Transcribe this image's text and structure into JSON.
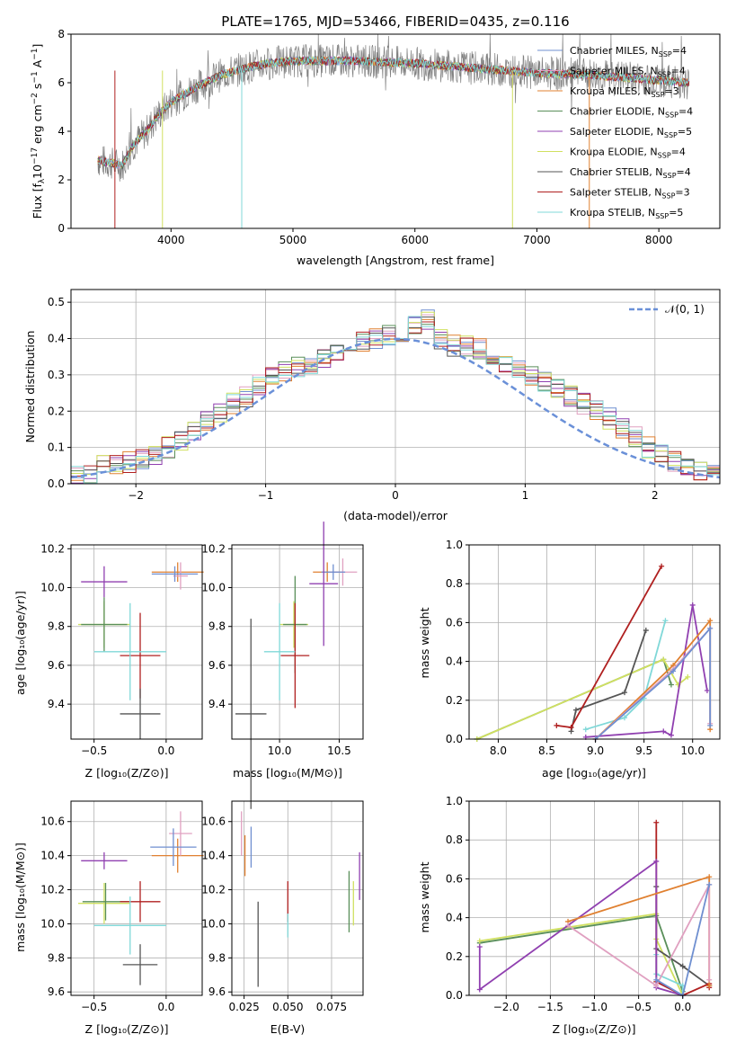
{
  "figure": {
    "title": "PLATE=1765, MJD=53466, FIBERID=0435, z=0.116"
  },
  "chart_data": [
    {
      "id": "spectrum",
      "type": "line",
      "xlabel": "wavelength [Angstrom, rest frame]",
      "ylabel": "Flux [f_λ 10^-17 erg cm^-2 s^-1 A^-1]",
      "xlim": [
        3180,
        8500
      ],
      "ylim": [
        0,
        8
      ],
      "xticks": [
        "4000",
        "5000",
        "6000",
        "7000",
        "8000"
      ],
      "yticks": [
        "0",
        "2",
        "4",
        "6",
        "8"
      ],
      "grid": false,
      "legend_position": "right",
      "data_points_approx": [
        [
          3400,
          2.8
        ],
        [
          3600,
          2.6
        ],
        [
          3700,
          3.5
        ],
        [
          3800,
          4.0
        ],
        [
          3900,
          4.7
        ],
        [
          4000,
          5.2
        ],
        [
          4100,
          5.5
        ],
        [
          4200,
          5.8
        ],
        [
          4400,
          6.3
        ],
        [
          4600,
          6.6
        ],
        [
          4800,
          6.8
        ],
        [
          5000,
          6.9
        ],
        [
          5500,
          6.9
        ],
        [
          6000,
          6.8
        ],
        [
          6500,
          6.6
        ],
        [
          7000,
          6.4
        ],
        [
          7500,
          6.3
        ],
        [
          8000,
          6.1
        ],
        [
          8250,
          6.0
        ]
      ],
      "series": [
        {
          "label": "Chabrier MILES, N",
          "sub": "SSP",
          "tail": "=4",
          "color": "#6f8fd0"
        },
        {
          "label": "Salpeter MILES, N",
          "sub": "SSP",
          "tail": "=4",
          "color": "#e0a0c0"
        },
        {
          "label": "Kroupa MILES, N",
          "sub": "SSP",
          "tail": "=3",
          "color": "#e08030"
        },
        {
          "label": "Chabrier ELODIE, N",
          "sub": "SSP",
          "tail": "=4",
          "color": "#5a8f5a"
        },
        {
          "label": "Salpeter ELODIE, N",
          "sub": "SSP",
          "tail": "=5",
          "color": "#9040b0"
        },
        {
          "label": "Kroupa ELODIE, N",
          "sub": "SSP",
          "tail": "=4",
          "color": "#d0e060"
        },
        {
          "label": "Chabrier STELIB, N",
          "sub": "SSP",
          "tail": "=4",
          "color": "#555555"
        },
        {
          "label": "Salpeter STELIB, N",
          "sub": "SSP",
          "tail": "=3",
          "color": "#b02020"
        },
        {
          "label": "Kroupa STELIB, N",
          "sub": "SSP",
          "tail": "=5",
          "color": "#80d8d8"
        }
      ]
    },
    {
      "id": "residuals",
      "type": "line",
      "xlabel": "(data-model)/error",
      "ylabel": "Normed distribution",
      "xlim": [
        -2.5,
        2.5
      ],
      "ylim": [
        0,
        0.535
      ],
      "xticks": [
        -2,
        -1,
        0,
        1,
        2
      ],
      "xtick_labels": [
        "−2",
        "−1",
        "0",
        "1",
        "2"
      ],
      "yticks": [
        "0.0",
        "0.1",
        "0.2",
        "0.3",
        "0.4",
        "0.5"
      ],
      "grid": true,
      "legend_position": "top-right",
      "legend_label": "𝒩(0, 1)",
      "gaussian_color": "#6a90d8",
      "bin_width": 0.1,
      "hist_values": [
        0.02,
        0.02,
        0.05,
        0.05,
        0.06,
        0.07,
        0.08,
        0.1,
        0.12,
        0.14,
        0.17,
        0.2,
        0.22,
        0.24,
        0.27,
        0.29,
        0.31,
        0.32,
        0.33,
        0.35,
        0.36,
        0.37,
        0.39,
        0.4,
        0.41,
        0.42,
        0.44,
        0.45,
        0.4,
        0.38,
        0.38,
        0.37,
        0.35,
        0.33,
        0.31,
        0.3,
        0.28,
        0.26,
        0.24,
        0.22,
        0.2,
        0.18,
        0.15,
        0.13,
        0.1,
        0.08,
        0.06,
        0.05,
        0.04,
        0.03
      ]
    },
    {
      "id": "age_vs_Z",
      "type": "scatter",
      "xlabel": "Z [log₁₀(Z/Z⊙)]",
      "ylabel": "age  [log₁₀(age/yr)]",
      "xlim": [
        -0.66,
        0.25
      ],
      "ylim": [
        9.22,
        10.22
      ],
      "xticks": [
        -0.5,
        0.0
      ],
      "xtick_labels": [
        "−0.5",
        "0.0"
      ],
      "yticks": [
        9.4,
        9.6,
        9.8,
        10.0,
        10.2
      ],
      "ytick_labels": [
        "9.4",
        "9.6",
        "9.8",
        "10.0",
        "10.2"
      ],
      "grid": true,
      "points": [
        {
          "x": 0.08,
          "y": 10.08,
          "xerr": 0.18,
          "yerr": 0.05,
          "color": "#e08030"
        },
        {
          "x": 0.1,
          "y": 10.06,
          "xerr": 0.05,
          "yerr": 0.07,
          "color": "#e0a0c0"
        },
        {
          "x": 0.06,
          "y": 10.07,
          "xerr": 0.16,
          "yerr": 0.04,
          "color": "#6f8fd0"
        },
        {
          "x": -0.43,
          "y": 10.03,
          "xerr": 0.16,
          "yerr": 0.08,
          "color": "#9040b0"
        },
        {
          "x": -0.43,
          "y": 9.81,
          "xerr": 0.18,
          "yerr": 0.12,
          "color": "#d0e060"
        },
        {
          "x": -0.43,
          "y": 9.81,
          "xerr": 0.16,
          "yerr": 0.14,
          "color": "#5a8f5a"
        },
        {
          "x": -0.18,
          "y": 9.65,
          "xerr": 0.14,
          "yerr": 0.22,
          "color": "#b02020"
        },
        {
          "x": -0.25,
          "y": 9.67,
          "xerr": 0.25,
          "yerr": 0.25,
          "color": "#80d8d8"
        },
        {
          "x": -0.18,
          "y": 9.35,
          "xerr": 0.14,
          "yerr": 0.13,
          "color": "#555555"
        }
      ]
    },
    {
      "id": "age_vs_mass",
      "type": "scatter",
      "xlabel": "mass [log₁₀(M/M⊙)]",
      "ylabel": "",
      "xlim": [
        9.6,
        10.7
      ],
      "ylim": [
        9.22,
        10.22
      ],
      "xticks": [
        10.0,
        10.5
      ],
      "xtick_labels": [
        "10.0",
        "10.5"
      ],
      "yticks": [
        9.4,
        9.6,
        9.8,
        10.0,
        10.2
      ],
      "ytick_labels": [
        "9.4",
        "9.6",
        "9.8",
        "10.0",
        "10.2"
      ],
      "grid": true,
      "points": [
        {
          "x": 10.4,
          "y": 10.08,
          "xerr": 0.12,
          "yerr": 0.05,
          "color": "#e08030"
        },
        {
          "x": 10.53,
          "y": 10.08,
          "xerr": 0.12,
          "yerr": 0.07,
          "color": "#e0a0c0"
        },
        {
          "x": 10.45,
          "y": 10.08,
          "xerr": 0.1,
          "yerr": 0.04,
          "color": "#6f8fd0"
        },
        {
          "x": 10.37,
          "y": 10.02,
          "xerr": 0.12,
          "yerr": 0.32,
          "color": "#9040b0"
        },
        {
          "x": 10.12,
          "y": 9.81,
          "xerr": 0.12,
          "yerr": 0.12,
          "color": "#d0e060"
        },
        {
          "x": 10.13,
          "y": 9.81,
          "xerr": 0.1,
          "yerr": 0.25,
          "color": "#5a8f5a"
        },
        {
          "x": 10.13,
          "y": 9.65,
          "xerr": 0.12,
          "yerr": 0.27,
          "color": "#b02020"
        },
        {
          "x": 10.0,
          "y": 9.67,
          "xerr": 0.13,
          "yerr": 0.25,
          "color": "#80d8d8"
        },
        {
          "x": 9.76,
          "y": 9.35,
          "xerr": 0.13,
          "yerr": 0.49,
          "color": "#555555"
        }
      ]
    },
    {
      "id": "massweight_vs_age",
      "type": "line",
      "xlabel": "age  [log₁₀(age/yr)]",
      "ylabel": "mass weight",
      "xlim": [
        7.7,
        10.28
      ],
      "ylim": [
        0,
        1
      ],
      "xticks": [
        8.0,
        8.5,
        9.0,
        9.5,
        10.0
      ],
      "xtick_labels": [
        "8.0",
        "8.5",
        "9.0",
        "9.5",
        "10.0"
      ],
      "yticks": [
        0.0,
        0.2,
        0.4,
        0.6,
        0.8,
        1.0
      ],
      "ytick_labels": [
        "0.0",
        "0.2",
        "0.4",
        "0.6",
        "0.8",
        "1.0"
      ],
      "grid": true,
      "series": [
        {
          "name": "",
          "color": "#5a8f5a",
          "x": [
            7.78,
            9.7,
            9.78
          ],
          "y": [
            0.0,
            0.41,
            0.28
          ]
        },
        {
          "name": "",
          "color": "#d0e060",
          "x": [
            7.78,
            9.7,
            9.85,
            9.95
          ],
          "y": [
            0.0,
            0.41,
            0.28,
            0.32
          ]
        },
        {
          "name": "",
          "color": "#555555",
          "x": [
            8.75,
            8.8,
            9.3,
            9.52
          ],
          "y": [
            0.04,
            0.15,
            0.24,
            0.56
          ]
        },
        {
          "name": "",
          "color": "#b02020",
          "x": [
            8.6,
            8.75,
            9.68
          ],
          "y": [
            0.07,
            0.06,
            0.89
          ]
        },
        {
          "name": "",
          "color": "#80d8d8",
          "x": [
            8.9,
            9.3,
            9.5,
            9.72
          ],
          "y": [
            0.05,
            0.11,
            0.21,
            0.61
          ]
        },
        {
          "name": "",
          "color": "#9040b0",
          "x": [
            8.9,
            9.7,
            9.78,
            10.0,
            10.15
          ],
          "y": [
            0.01,
            0.04,
            0.02,
            0.69,
            0.25
          ]
        },
        {
          "name": "",
          "color": "#e08030",
          "x": [
            9.0,
            9.8,
            10.18,
            10.18
          ],
          "y": [
            0.0,
            0.38,
            0.61,
            0.05
          ]
        },
        {
          "name": "",
          "color": "#e0a0c0",
          "x": [
            9.0,
            9.8,
            10.18,
            10.18
          ],
          "y": [
            0.0,
            0.36,
            0.57,
            0.08
          ]
        },
        {
          "name": "",
          "color": "#6f8fd0",
          "x": [
            9.0,
            9.8,
            10.18,
            10.18
          ],
          "y": [
            0.0,
            0.35,
            0.57,
            0.07
          ]
        }
      ]
    },
    {
      "id": "mass_vs_Z",
      "type": "scatter",
      "xlabel": "Z [log₁₀(Z/Z⊙)]",
      "ylabel": "mass [log₁₀(M/M⊙)]",
      "xlim": [
        -0.66,
        0.25
      ],
      "ylim": [
        9.58,
        10.72
      ],
      "xticks": [
        -0.5,
        0.0
      ],
      "xtick_labels": [
        "−0.5",
        "0.0"
      ],
      "yticks": [
        9.6,
        9.8,
        10.0,
        10.2,
        10.4,
        10.6
      ],
      "ytick_labels": [
        "9.6",
        "9.8",
        "10.0",
        "10.2",
        "10.4",
        "10.6"
      ],
      "grid": true,
      "points": [
        {
          "x": 0.08,
          "y": 10.4,
          "xerr": 0.18,
          "yerr": 0.1,
          "color": "#e08030"
        },
        {
          "x": 0.1,
          "y": 10.53,
          "xerr": 0.08,
          "yerr": 0.13,
          "color": "#e0a0c0"
        },
        {
          "x": 0.05,
          "y": 10.45,
          "xerr": 0.16,
          "yerr": 0.11,
          "color": "#6f8fd0"
        },
        {
          "x": -0.43,
          "y": 10.37,
          "xerr": 0.16,
          "yerr": 0.05,
          "color": "#9040b0"
        },
        {
          "x": -0.43,
          "y": 10.12,
          "xerr": 0.18,
          "yerr": 0.12,
          "color": "#d0e060"
        },
        {
          "x": -0.42,
          "y": 10.13,
          "xerr": 0.16,
          "yerr": 0.11,
          "color": "#5a8f5a"
        },
        {
          "x": -0.18,
          "y": 10.13,
          "xerr": 0.14,
          "yerr": 0.12,
          "color": "#b02020"
        },
        {
          "x": -0.25,
          "y": 9.99,
          "xerr": 0.25,
          "yerr": 0.17,
          "color": "#80d8d8"
        },
        {
          "x": -0.18,
          "y": 9.76,
          "xerr": 0.12,
          "yerr": 0.12,
          "color": "#555555"
        }
      ]
    },
    {
      "id": "mass_vs_EBV",
      "type": "scatter",
      "xlabel": "E(B-V)",
      "ylabel": "",
      "xlim": [
        0.018,
        0.093
      ],
      "ylim": [
        9.58,
        10.72
      ],
      "xticks": [
        0.025,
        0.05,
        0.075
      ],
      "xtick_labels": [
        "0.025",
        "0.050",
        "0.075"
      ],
      "yticks": [
        9.6,
        9.8,
        10.0,
        10.2,
        10.4,
        10.6
      ],
      "ytick_labels": [
        "9.6",
        "9.8",
        "10.0",
        "10.2",
        "10.4",
        "10.6"
      ],
      "grid": true,
      "points": [
        {
          "x": 0.0235,
          "y": 10.53,
          "xerr": 0,
          "yerr": 0.13,
          "color": "#e0a0c0"
        },
        {
          "x": 0.0255,
          "y": 10.4,
          "xerr": 0,
          "yerr": 0.12,
          "color": "#e08030"
        },
        {
          "x": 0.029,
          "y": 10.45,
          "xerr": 0,
          "yerr": 0.12,
          "color": "#6f8fd0"
        },
        {
          "x": 0.033,
          "y": 9.88,
          "xerr": 0,
          "yerr": 0.25,
          "color": "#555555"
        },
        {
          "x": 0.05,
          "y": 10.13,
          "xerr": 0,
          "yerr": 0.12,
          "color": "#b02020"
        },
        {
          "x": 0.05,
          "y": 9.99,
          "xerr": 0,
          "yerr": 0.07,
          "color": "#80d8d8"
        },
        {
          "x": 0.085,
          "y": 10.13,
          "xerr": 0,
          "yerr": 0.18,
          "color": "#5a8f5a"
        },
        {
          "x": 0.0875,
          "y": 10.12,
          "xerr": 0,
          "yerr": 0.13,
          "color": "#d0e060"
        },
        {
          "x": 0.091,
          "y": 10.28,
          "xerr": 0,
          "yerr": 0.14,
          "color": "#9040b0"
        }
      ]
    },
    {
      "id": "massweight_vs_Z",
      "type": "line",
      "xlabel": "Z [log₁₀(Z/Z⊙)]",
      "ylabel": "mass weight",
      "xlim": [
        -2.42,
        0.42
      ],
      "ylim": [
        0,
        1
      ],
      "xticks": [
        -2.0,
        -1.5,
        -1.0,
        -0.5,
        0.0
      ],
      "xtick_labels": [
        "−2.0",
        "−1.5",
        "−1.0",
        "−0.5",
        "0.0"
      ],
      "yticks": [
        0.0,
        0.2,
        0.4,
        0.6,
        0.8,
        1.0
      ],
      "ytick_labels": [
        "0.0",
        "0.2",
        "0.4",
        "0.6",
        "0.8",
        "1.0"
      ],
      "grid": true,
      "series": [
        {
          "name": "",
          "color": "#5a8f5a",
          "x": [
            -2.3,
            -0.3,
            0.0
          ],
          "y": [
            0.27,
            0.41,
            0.02
          ]
        },
        {
          "name": "",
          "color": "#d0e060",
          "x": [
            -2.3,
            -0.3,
            -0.3,
            0.0
          ],
          "y": [
            0.28,
            0.42,
            0.29,
            0.0
          ]
        },
        {
          "name": "",
          "color": "#555555",
          "x": [
            -0.3,
            -0.3,
            0.0,
            0.3
          ],
          "y": [
            0.56,
            0.24,
            0.15,
            0.05
          ]
        },
        {
          "name": "",
          "color": "#b02020",
          "x": [
            -0.3,
            -0.3,
            0.0,
            0.3,
            0.3
          ],
          "y": [
            0.89,
            0.07,
            0.0,
            0.06,
            0.04
          ]
        },
        {
          "name": "",
          "color": "#80d8d8",
          "x": [
            -0.3,
            -0.3,
            0.0,
            0.0
          ],
          "y": [
            0.21,
            0.11,
            0.05,
            0.0
          ]
        },
        {
          "name": "",
          "color": "#9040b0",
          "x": [
            -2.3,
            -2.3,
            -0.3,
            -0.3,
            0.0
          ],
          "y": [
            0.25,
            0.03,
            0.69,
            0.04,
            0.0
          ]
        },
        {
          "name": "",
          "color": "#e08030",
          "x": [
            -1.3,
            0.3,
            0.3
          ],
          "y": [
            0.38,
            0.61,
            0.05
          ]
        },
        {
          "name": "",
          "color": "#e0a0c0",
          "x": [
            -1.3,
            -0.3,
            0.3,
            0.3
          ],
          "y": [
            0.36,
            0.05,
            0.57,
            0.08
          ]
        },
        {
          "name": "",
          "color": "#6f8fd0",
          "x": [
            -0.3,
            0.0,
            0.3
          ],
          "y": [
            0.08,
            0.0,
            0.57
          ]
        }
      ]
    }
  ]
}
